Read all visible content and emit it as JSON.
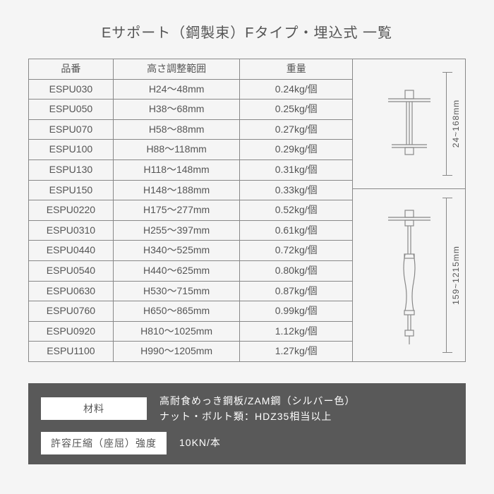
{
  "title": "Eサポート（鋼製束）Fタイプ・埋込式 一覧",
  "table": {
    "headers": {
      "code": "品番",
      "range": "高さ調整範囲",
      "weight": "重量"
    },
    "rows": [
      {
        "code": "ESPU030",
        "range": "H24～48mm",
        "weight": "0.24kg/個"
      },
      {
        "code": "ESPU050",
        "range": "H38～68mm",
        "weight": "0.25kg/個"
      },
      {
        "code": "ESPU070",
        "range": "H58～88mm",
        "weight": "0.27kg/個"
      },
      {
        "code": "ESPU100",
        "range": "H88～118mm",
        "weight": "0.29kg/個"
      },
      {
        "code": "ESPU130",
        "range": "H118～148mm",
        "weight": "0.31kg/個"
      },
      {
        "code": "ESPU150",
        "range": "H148～188mm",
        "weight": "0.33kg/個"
      },
      {
        "code": "ESPU0220",
        "range": "H175～277mm",
        "weight": "0.52kg/個"
      },
      {
        "code": "ESPU0310",
        "range": "H255～397mm",
        "weight": "0.61kg/個"
      },
      {
        "code": "ESPU0440",
        "range": "H340～525mm",
        "weight": "0.72kg/個"
      },
      {
        "code": "ESPU0540",
        "range": "H440～625mm",
        "weight": "0.80kg/個"
      },
      {
        "code": "ESPU0630",
        "range": "H530～715mm",
        "weight": "0.87kg/個"
      },
      {
        "code": "ESPU0760",
        "range": "H650～865mm",
        "weight": "0.99kg/個"
      },
      {
        "code": "ESPU0920",
        "range": "H810～1025mm",
        "weight": "1.12kg/個"
      },
      {
        "code": "ESPU1100",
        "range": "H990～1205mm",
        "weight": "1.27kg/個"
      }
    ]
  },
  "diagrams": {
    "short": {
      "dim_label": "24~168mm"
    },
    "long": {
      "dim_label": "159~1215mm"
    }
  },
  "footer": {
    "material_label": "材料",
    "material_value": "高耐食めっき鋼板/ZAM鋼（シルバー色）\nナット・ボルト類：HDZ35相当以上",
    "strength_label": "許容圧縮（座屈）強度",
    "strength_value": "10KN/本"
  },
  "colors": {
    "page_bg": "#f5f5f5",
    "text": "#555555",
    "border": "#888888",
    "footer_bg": "#595959",
    "footer_text": "#ffffff",
    "diagram_stroke": "#888888"
  }
}
